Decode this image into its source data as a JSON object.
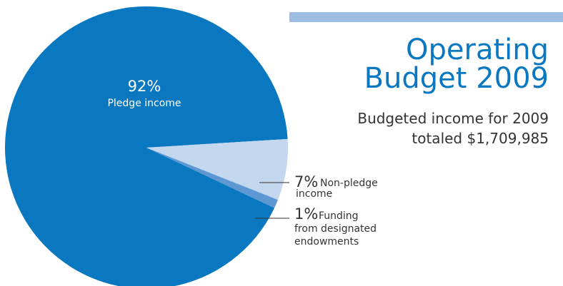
{
  "header": {
    "title_line1": "Operating",
    "title_line2": "Budget 2009",
    "subtitle_line1": "Budgeted income for 2009",
    "subtitle_line2": "totaled $1,709,985"
  },
  "colors": {
    "accent_bar": "#9dbde3",
    "title": "#0978c1",
    "text": "#333333"
  },
  "chart_data": {
    "type": "pie",
    "slices": [
      {
        "pct_label": "92%",
        "label_lines": [
          "Pledge income"
        ],
        "value": 92,
        "color": "#0978c1"
      },
      {
        "pct_label": "7%",
        "label_lines": [
          "Non-pledge",
          "income"
        ],
        "value": 7,
        "color": "#c3d7ef"
      },
      {
        "pct_label": "1%",
        "label_lines": [
          "Funding",
          "from designated",
          "endowments"
        ],
        "value": 1,
        "color": "#5e98d3"
      }
    ]
  }
}
